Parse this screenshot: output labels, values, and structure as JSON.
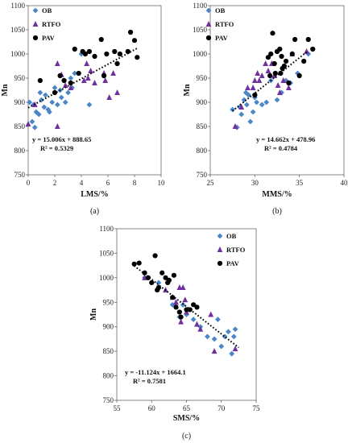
{
  "legend_labels": [
    "OB",
    "RTFO",
    "PAV"
  ],
  "colors": {
    "OB": "#4a86c8",
    "RTFO": "#7030a0",
    "PAV": "#000000",
    "trend": "#000000"
  },
  "chart_data": [
    {
      "type": "scatter",
      "caption": "(a)",
      "xlabel": "LMS/%",
      "ylabel": "Mn",
      "xlim": [
        0,
        10
      ],
      "ylim": [
        750,
        1100
      ],
      "xticks": [
        0,
        2,
        4,
        6,
        8,
        10
      ],
      "yticks": [
        750,
        800,
        850,
        900,
        950,
        1000,
        1050,
        1100
      ],
      "equation": "y = 15.006x + 888.65",
      "r2": "R² = 0.5329",
      "trendline": {
        "slope": 15.006,
        "intercept": 888.65,
        "x_range": [
          0,
          8.2
        ]
      },
      "series": [
        {
          "name": "OB",
          "marker": "diamond",
          "points": [
            [
              0.1,
              900
            ],
            [
              0.3,
              860
            ],
            [
              0.5,
              848
            ],
            [
              0.6,
              880
            ],
            [
              0.8,
              875
            ],
            [
              1.0,
              905
            ],
            [
              1.2,
              890
            ],
            [
              1.5,
              885
            ],
            [
              1.6,
              880
            ],
            [
              1.8,
              900
            ],
            [
              2.0,
              930
            ],
            [
              2.2,
              895
            ],
            [
              2.5,
              910
            ],
            [
              2.8,
              900
            ],
            [
              3.0,
              920
            ],
            [
              3.2,
              950
            ],
            [
              3.5,
              960
            ],
            [
              4.0,
              1000
            ],
            [
              4.6,
              895
            ],
            [
              0.4,
              895
            ],
            [
              1.3,
              915
            ],
            [
              2.4,
              925
            ],
            [
              3.3,
              930
            ],
            [
              0.9,
              920
            ]
          ]
        },
        {
          "name": "RTFO",
          "marker": "triangle",
          "points": [
            [
              0,
              855
            ],
            [
              0.5,
              895
            ],
            [
              2.2,
              980
            ],
            [
              2.5,
              957
            ],
            [
              2.2,
              850
            ],
            [
              3.2,
              930
            ],
            [
              4.4,
              980
            ],
            [
              4.5,
              950
            ],
            [
              4.7,
              965
            ],
            [
              5.0,
              940
            ],
            [
              5.7,
              960
            ],
            [
              5.8,
              945
            ],
            [
              6.1,
              910
            ],
            [
              6.4,
              960
            ],
            [
              6.7,
              920
            ],
            [
              2.8,
              935
            ],
            [
              4.2,
              945
            ]
          ]
        },
        {
          "name": "PAV",
          "marker": "circle",
          "points": [
            [
              0.9,
              945
            ],
            [
              2.4,
              955
            ],
            [
              2.7,
              945
            ],
            [
              3.2,
              940
            ],
            [
              3.5,
              1010
            ],
            [
              4.1,
              1005
            ],
            [
              4.3,
              1000
            ],
            [
              4.6,
              1005
            ],
            [
              5.0,
              995
            ],
            [
              5.5,
              1030
            ],
            [
              5.7,
              955
            ],
            [
              6.5,
              1005
            ],
            [
              6.7,
              980
            ],
            [
              7.5,
              1005
            ],
            [
              7.7,
              1045
            ],
            [
              8.0,
              1028
            ],
            [
              8.2,
              993
            ],
            [
              2.0,
              920
            ],
            [
              3.8,
              960
            ],
            [
              5.9,
              1000
            ],
            [
              6.9,
              1000
            ]
          ]
        }
      ]
    },
    {
      "type": "scatter",
      "caption": "(b)",
      "xlabel": "MMS/%",
      "ylabel": "Mn",
      "xlim": [
        25,
        40
      ],
      "ylim": [
        750,
        1100
      ],
      "xticks": [
        25,
        30,
        35,
        40
      ],
      "yticks": [
        750,
        800,
        850,
        900,
        950,
        1000,
        1050,
        1100
      ],
      "equation": "y = 14.662x + 478.96",
      "r2": "R² = 0.4784",
      "trendline": {
        "slope": 14.662,
        "intercept": 478.96,
        "x_range": [
          27.5,
          36
        ]
      },
      "series": [
        {
          "name": "OB",
          "marker": "diamond",
          "points": [
            [
              27.5,
              885
            ],
            [
              28.0,
              848
            ],
            [
              28.3,
              890
            ],
            [
              28.5,
              875
            ],
            [
              28.8,
              905
            ],
            [
              29.0,
              920
            ],
            [
              29.3,
              915
            ],
            [
              29.5,
              860
            ],
            [
              29.8,
              880
            ],
            [
              30.2,
              900
            ],
            [
              30.8,
              895
            ],
            [
              31.3,
              900
            ],
            [
              31.8,
              945
            ],
            [
              32.5,
              905
            ],
            [
              33.0,
              920
            ],
            [
              33.5,
              945
            ],
            [
              34.0,
              940
            ],
            [
              34.8,
              960
            ],
            [
              36.0,
              1000
            ],
            [
              29.1,
              895
            ],
            [
              30.0,
              910
            ]
          ]
        },
        {
          "name": "RTFO",
          "marker": "triangle",
          "points": [
            [
              27.8,
              850
            ],
            [
              28.5,
              890
            ],
            [
              29.2,
              930
            ],
            [
              29.8,
              930
            ],
            [
              30.0,
              945
            ],
            [
              30.5,
              945
            ],
            [
              30.8,
              955
            ],
            [
              31.2,
              980
            ],
            [
              31.5,
              965
            ],
            [
              31.9,
              980
            ],
            [
              32.2,
              955
            ],
            [
              32.6,
              935
            ],
            [
              32.8,
              920
            ],
            [
              33.2,
              945
            ],
            [
              33.8,
              930
            ],
            [
              34.2,
              1000
            ],
            [
              35.8,
              1005
            ],
            [
              30.3,
              960
            ]
          ]
        },
        {
          "name": "PAV",
          "marker": "circle",
          "points": [
            [
              30.0,
              915
            ],
            [
              31.5,
              993
            ],
            [
              31.8,
              1000
            ],
            [
              32.0,
              1043
            ],
            [
              32.2,
              980
            ],
            [
              32.5,
              1005
            ],
            [
              32.8,
              1010
            ],
            [
              33.0,
              995
            ],
            [
              33.3,
              975
            ],
            [
              33.5,
              985
            ],
            [
              33.8,
              940
            ],
            [
              34.2,
              1000
            ],
            [
              34.5,
              1030
            ],
            [
              35.0,
              955
            ],
            [
              35.5,
              985
            ],
            [
              36.0,
              1030
            ],
            [
              36.5,
              1010
            ],
            [
              31.7,
              955
            ],
            [
              32.3,
              960
            ],
            [
              32.9,
              960
            ],
            [
              33.1,
              970
            ]
          ]
        }
      ]
    },
    {
      "type": "scatter",
      "caption": "(c)",
      "xlabel": "SMS/%",
      "ylabel": "Mn",
      "xlim": [
        55,
        75
      ],
      "ylim": [
        750,
        1100
      ],
      "xticks": [
        55,
        60,
        65,
        70,
        75
      ],
      "yticks": [
        750,
        800,
        850,
        900,
        950,
        1000,
        1050,
        1100
      ],
      "equation": "y = -11.124x + 1664.1",
      "r2": "R² = 0.7581",
      "trendline": {
        "slope": -11.124,
        "intercept": 1664.1,
        "x_range": [
          57.5,
          72.5
        ]
      },
      "series": [
        {
          "name": "OB",
          "marker": "diamond",
          "points": [
            [
              59.0,
              1000
            ],
            [
              61.0,
              990
            ],
            [
              63.0,
              945
            ],
            [
              64.0,
              920
            ],
            [
              64.5,
              945
            ],
            [
              65.0,
              925
            ],
            [
              66.0,
              915
            ],
            [
              67.0,
              900
            ],
            [
              68.0,
              880
            ],
            [
              69.0,
              875
            ],
            [
              69.5,
              915
            ],
            [
              70.0,
              860
            ],
            [
              70.5,
              880
            ],
            [
              71.0,
              890
            ],
            [
              71.5,
              845
            ],
            [
              72.0,
              895
            ],
            [
              71.8,
              880
            ]
          ]
        },
        {
          "name": "RTFO",
          "marker": "triangle",
          "points": [
            [
              59.0,
              1000
            ],
            [
              62.0,
              975
            ],
            [
              63.5,
              950
            ],
            [
              64.0,
              980
            ],
            [
              64.5,
              980
            ],
            [
              64.8,
              955
            ],
            [
              65.0,
              930
            ],
            [
              66.5,
              905
            ],
            [
              67.0,
              895
            ],
            [
              68.5,
              925
            ],
            [
              69.0,
              850
            ],
            [
              72.0,
              855
            ],
            [
              64.2,
              910
            ],
            [
              63.0,
              960
            ]
          ]
        },
        {
          "name": "PAV",
          "marker": "circle",
          "points": [
            [
              57.5,
              1028
            ],
            [
              58.2,
              1030
            ],
            [
              59.0,
              1010
            ],
            [
              59.5,
              1000
            ],
            [
              60.0,
              990
            ],
            [
              60.5,
              1045
            ],
            [
              61.0,
              980
            ],
            [
              61.5,
              1010
            ],
            [
              62.0,
              1000
            ],
            [
              62.5,
              995
            ],
            [
              63.0,
              960
            ],
            [
              63.2,
              1005
            ],
            [
              63.5,
              940
            ],
            [
              64.0,
              930
            ],
            [
              64.2,
              920
            ],
            [
              65.0,
              935
            ],
            [
              65.5,
              935
            ],
            [
              66.0,
              945
            ],
            [
              66.5,
              940
            ],
            [
              62.3,
              990
            ],
            [
              60.8,
              975
            ]
          ]
        }
      ]
    }
  ]
}
